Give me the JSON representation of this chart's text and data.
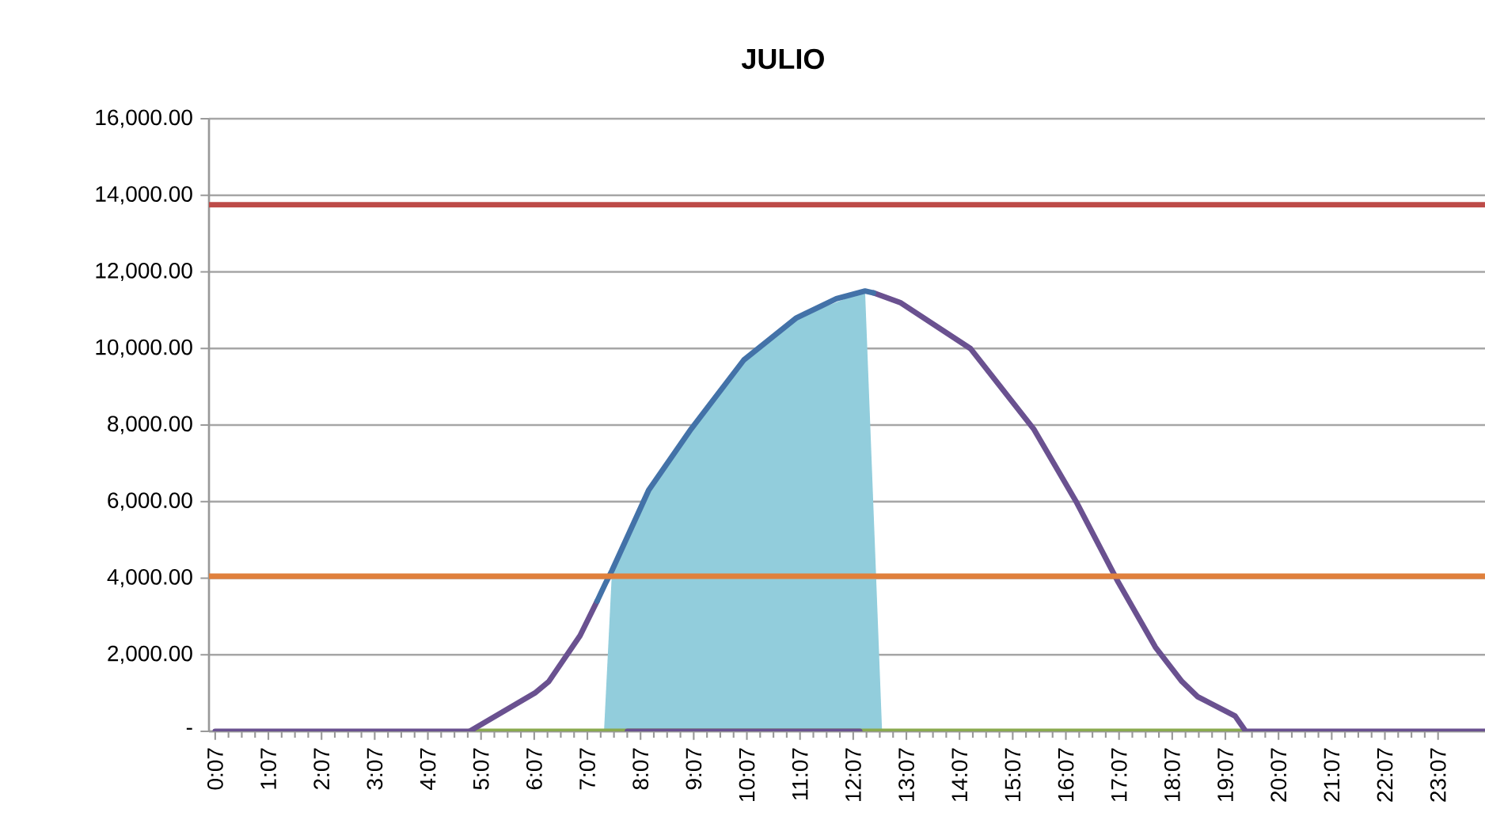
{
  "chart_data": {
    "type": "line",
    "title": "JULIO",
    "xlim": [
      0,
      24
    ],
    "ylim": [
      0,
      16000
    ],
    "yticks": [
      {
        "value": 0,
        "label": "-"
      },
      {
        "value": 2000,
        "label": "2,000.00"
      },
      {
        "value": 4000,
        "label": "4,000.00"
      },
      {
        "value": 6000,
        "label": "6,000.00"
      },
      {
        "value": 8000,
        "label": "8,000.00"
      },
      {
        "value": 10000,
        "label": "10,000.00"
      },
      {
        "value": 12000,
        "label": "12,000.00"
      },
      {
        "value": 14000,
        "label": "14,000.00"
      },
      {
        "value": 16000,
        "label": "16,000.00"
      }
    ],
    "xticks": [
      {
        "value": 0.117,
        "label": "0:07"
      },
      {
        "value": 1.117,
        "label": "1:07"
      },
      {
        "value": 2.117,
        "label": "2:07"
      },
      {
        "value": 3.117,
        "label": "3:07"
      },
      {
        "value": 4.117,
        "label": "4:07"
      },
      {
        "value": 5.117,
        "label": "5:07"
      },
      {
        "value": 6.117,
        "label": "6:07"
      },
      {
        "value": 7.117,
        "label": "7:07"
      },
      {
        "value": 8.117,
        "label": "8:07"
      },
      {
        "value": 9.117,
        "label": "9:07"
      },
      {
        "value": 10.117,
        "label": "10:07"
      },
      {
        "value": 11.117,
        "label": "11:07"
      },
      {
        "value": 12.117,
        "label": "12:07"
      },
      {
        "value": 13.117,
        "label": "13:07"
      },
      {
        "value": 14.117,
        "label": "14:07"
      },
      {
        "value": 15.117,
        "label": "15:07"
      },
      {
        "value": 16.117,
        "label": "16:07"
      },
      {
        "value": 17.117,
        "label": "17:07"
      },
      {
        "value": 18.117,
        "label": "18:07"
      },
      {
        "value": 19.117,
        "label": "19:07"
      },
      {
        "value": 20.117,
        "label": "20:07"
      },
      {
        "value": 21.117,
        "label": "21:07"
      },
      {
        "value": 22.117,
        "label": "22:07"
      },
      {
        "value": 23.117,
        "label": "23:07"
      }
    ],
    "grid": "y",
    "series": [
      {
        "type": "area",
        "color": "#92cddc",
        "x": [
          7.43,
          7.58,
          8.27,
          9.07,
          10.06,
          11.05,
          12.34,
          12.66
        ],
        "values": [
          0,
          4200,
          6300,
          7900,
          9700,
          10800,
          11500,
          0
        ]
      },
      {
        "color": "#8aaa4f",
        "x": [
          4.9,
          19.4
        ],
        "values": [
          0,
          0
        ]
      },
      {
        "color": "#6a5190",
        "x": [
          0.117,
          4.9,
          6.13,
          6.39,
          6.98,
          7.3,
          7.6,
          7.87,
          12.24,
          12.3,
          12.5,
          13.0,
          14.32,
          15.51,
          16.31,
          17.1,
          17.8,
          18.3,
          18.6,
          19.3,
          19.5,
          24
        ],
        "values": [
          0,
          0,
          1000,
          1300,
          2500,
          3400,
          null,
          0,
          0,
          null,
          11450,
          11200,
          10000,
          7900,
          6000,
          3900,
          2200,
          1300,
          900,
          400,
          0,
          0
        ]
      },
      {
        "color": "#4372a8",
        "x": [
          7.3,
          7.47,
          7.58,
          8.27,
          9.07,
          10.06,
          11.05,
          11.8,
          12.34,
          12.5
        ],
        "values": [
          3400,
          3900,
          4200,
          6300,
          7900,
          9700,
          10800,
          11300,
          11500,
          11450
        ]
      }
    ],
    "ref_lines": [
      {
        "axis": "y",
        "value": 4050,
        "color": "#e0803c"
      },
      {
        "axis": "y",
        "value": 13750,
        "color": "#bd4b48"
      }
    ]
  }
}
